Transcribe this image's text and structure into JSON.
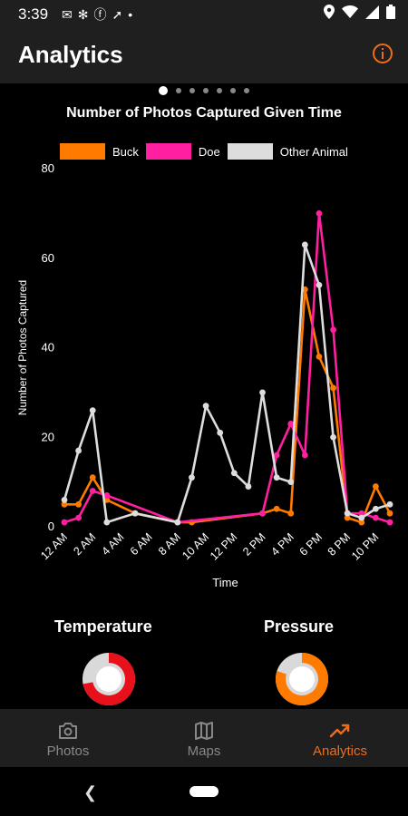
{
  "status_bar": {
    "time": "3:39",
    "left_icons": [
      "messages-icon",
      "fan-icon",
      "facebook-icon",
      "navigation-icon",
      "dot-icon"
    ],
    "right_icons": [
      "location-icon",
      "wifi-icon",
      "signal-icon",
      "battery-icon"
    ]
  },
  "app_bar": {
    "title": "Analytics",
    "info_icon": "info-icon"
  },
  "pager": {
    "total": 7,
    "active_index": 0
  },
  "chart": {
    "title": "Number of Photos Captured Given Time"
  },
  "chart_data": {
    "type": "line",
    "title": "Number of Photos Captured Given Time",
    "xlabel": "Time",
    "ylabel": "Number of Photos Captured",
    "ylim": [
      0,
      80
    ],
    "yticks": [
      "0",
      "20",
      "40",
      "60",
      "80"
    ],
    "x_tick_labels": [
      "12 AM",
      "2 AM",
      "4 AM",
      "6 AM",
      "8 AM",
      "10 AM",
      "12 PM",
      "2 PM",
      "4 PM",
      "6 PM",
      "8 PM",
      "10 PM"
    ],
    "x": [
      "12 AM",
      "1 AM",
      "2 AM",
      "3 AM",
      "4 AM",
      "5 AM",
      "6 AM",
      "7 AM",
      "8 AM",
      "9 AM",
      "10 AM",
      "11 AM",
      "12 PM",
      "1 PM",
      "2 PM",
      "3 PM",
      "4 PM",
      "5 PM",
      "6 PM",
      "7 PM",
      "8 PM",
      "9 PM",
      "10 PM",
      "11 PM"
    ],
    "legend_position": "top",
    "grid": false,
    "series": [
      {
        "name": "Buck",
        "color": "#ff7b00",
        "values": [
          5,
          5,
          11,
          6,
          null,
          3,
          null,
          null,
          1,
          1,
          null,
          null,
          null,
          null,
          3,
          4,
          3,
          53,
          38,
          31,
          2,
          1,
          9,
          3
        ]
      },
      {
        "name": "Doe",
        "color": "#ff1fa0",
        "values": [
          1,
          2,
          8,
          7,
          null,
          null,
          null,
          null,
          1,
          null,
          null,
          null,
          null,
          null,
          3,
          16,
          23,
          16,
          70,
          44,
          3,
          3,
          2,
          1
        ]
      },
      {
        "name": "Other Animal",
        "color": "#dddddd",
        "values": [
          6,
          17,
          26,
          1,
          null,
          3,
          null,
          null,
          1,
          11,
          27,
          21,
          12,
          9,
          30,
          11,
          10,
          63,
          54,
          20,
          3,
          2,
          4,
          5
        ]
      }
    ]
  },
  "gauges": [
    {
      "label": "Temperature",
      "fill_fraction": 0.72,
      "color": "#e8101a",
      "track_color": "#d9d9d9"
    },
    {
      "label": "Pressure",
      "fill_fraction": 0.8,
      "color": "#ff7b00",
      "track_color": "#d9d9d9"
    }
  ],
  "bottom_nav": {
    "items": [
      {
        "label": "Photos",
        "icon": "camera-icon",
        "active": false
      },
      {
        "label": "Maps",
        "icon": "map-icon",
        "active": false
      },
      {
        "label": "Analytics",
        "icon": "trending-up-icon",
        "active": true
      }
    ],
    "accent_color": "#ef6c1a",
    "inactive_color": "#888888"
  },
  "system_nav": {
    "back_icon": "back-icon",
    "home_icon": "home-pill-icon"
  }
}
